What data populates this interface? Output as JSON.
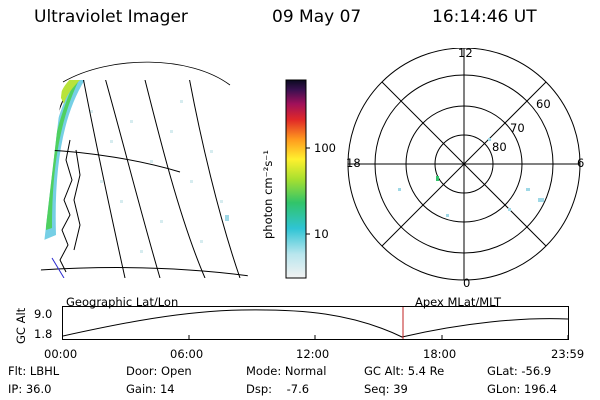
{
  "header": {
    "instrument": "Ultraviolet Imager",
    "date": "09 May 07",
    "time": "16:14:46 UT"
  },
  "colorbar": {
    "unit_label": "photon cm⁻²s⁻¹",
    "ticks": [
      "100",
      "10"
    ]
  },
  "polar": {
    "mlt_labels": {
      "top": "12",
      "left": "18",
      "right": "6",
      "bottom": "0"
    },
    "lat_labels": [
      "60",
      "70",
      "80"
    ]
  },
  "labels": {
    "left_map": "Geographic Lat/Lon",
    "right_map": "Apex MLat/MLT"
  },
  "orbit_plot": {
    "ylabel": "GC Alt",
    "y_ticks": [
      "9.0",
      "1.8"
    ],
    "x_ticks": [
      "00:00",
      "06:00",
      "12:00",
      "18:00",
      "23:59"
    ]
  },
  "status": {
    "flt": "Flt: LBHL",
    "ip": "IP: 36.0",
    "door": "Door: Open",
    "gain": "Gain: 14",
    "mode": "Mode: Normal",
    "dsp": "Dsp:    -7.6",
    "gcalt": "GC Alt: 5.4 Re",
    "seq": "Seq: 39",
    "glat": "GLat: -56.9",
    "glon": "GLon: 196.4"
  }
}
